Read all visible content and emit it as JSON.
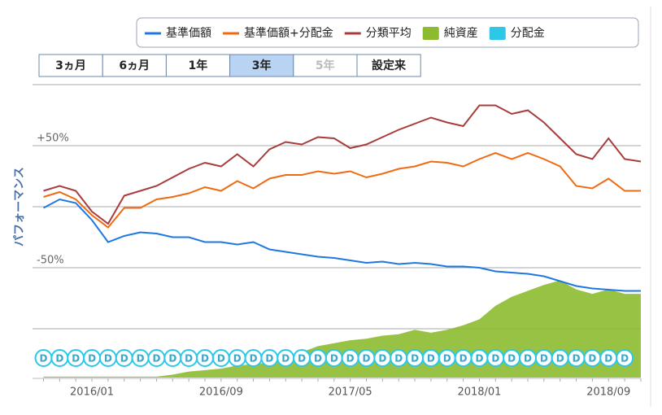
{
  "chart_data": {
    "type": "line",
    "y_label": "パフォーマンス",
    "range_buttons": {
      "labels": [
        "3ヵ月",
        "6ヵ月",
        "1年",
        "3年",
        "5年",
        "設定来"
      ],
      "selected": 3,
      "disabled": [
        4
      ]
    },
    "x": [
      "2015/10",
      "2015/11",
      "2015/12",
      "2016/01",
      "2016/02",
      "2016/03",
      "2016/04",
      "2016/05",
      "2016/06",
      "2016/07",
      "2016/08",
      "2016/09",
      "2016/10",
      "2016/11",
      "2016/12",
      "2017/01",
      "2017/02",
      "2017/03",
      "2017/04",
      "2017/05",
      "2017/06",
      "2017/07",
      "2017/08",
      "2017/09",
      "2017/10",
      "2017/11",
      "2017/12",
      "2018/01",
      "2018/02",
      "2018/03",
      "2018/04",
      "2018/05",
      "2018/06",
      "2018/07",
      "2018/08",
      "2018/09",
      "2018/10",
      "2018/11"
    ],
    "xticks": [
      "2016/01",
      "2016/09",
      "2017/05",
      "2018/01",
      "2018/09"
    ],
    "ylim": [
      -140,
      105
    ],
    "yticks": [
      {
        "value": 50,
        "label": "+50%"
      },
      {
        "value": -50,
        "label": "-50%"
      }
    ],
    "ygrid": [
      100,
      50,
      0,
      -50,
      -100
    ],
    "y2lim": [
      0,
      100
    ],
    "series": [
      {
        "name": "基準価額",
        "color": "#1f78e0",
        "type": "line",
        "values": [
          -1,
          6,
          3,
          -11,
          -29,
          -24,
          -21,
          -22,
          -25,
          -25,
          -29,
          -29,
          -31,
          -29,
          -35,
          -37,
          -39,
          -41,
          -42,
          -44,
          -46,
          -45,
          -47,
          -46,
          -47,
          -49,
          -49,
          -50,
          -53,
          -54,
          -55,
          -57,
          -61,
          -65,
          -67,
          -68,
          -69,
          -69
        ]
      },
      {
        "name": "基準価額+分配金",
        "color": "#f06a12",
        "type": "line",
        "values": [
          8,
          12,
          6,
          -7,
          -17,
          -1,
          -1,
          6,
          8,
          11,
          16,
          13,
          21,
          15,
          23,
          26,
          26,
          29,
          27,
          29,
          24,
          27,
          31,
          33,
          37,
          36,
          33,
          39,
          44,
          39,
          44,
          39,
          33,
          17,
          15,
          23,
          13,
          13
        ]
      },
      {
        "name": "分類平均",
        "color": "#a83c3c",
        "type": "line",
        "values": [
          13,
          17,
          13,
          -4,
          -14,
          9,
          13,
          17,
          24,
          31,
          36,
          33,
          43,
          33,
          47,
          53,
          51,
          57,
          56,
          48,
          51,
          57,
          63,
          68,
          73,
          69,
          66,
          83,
          83,
          76,
          79,
          69,
          56,
          43,
          39,
          56,
          39,
          37
        ]
      },
      {
        "name": "純資産",
        "color": "#8dbb2f",
        "type": "area",
        "axis": "y2",
        "values": [
          0.3,
          0.3,
          0.3,
          0.3,
          0.3,
          0.3,
          0.3,
          0.3,
          1,
          2,
          2.5,
          3,
          4,
          4.5,
          5,
          6.5,
          8.5,
          10.5,
          11.5,
          12.5,
          13,
          14,
          14.5,
          16,
          15,
          16,
          17.5,
          19.5,
          24,
          27,
          29,
          31,
          32.5,
          29.5,
          28,
          29.5,
          28,
          28
        ]
      },
      {
        "name": "分配金",
        "color": "#2cc8e6",
        "type": "marker",
        "marker_label": "D",
        "x": [
          "2015/10",
          "2015/11",
          "2015/12",
          "2016/01",
          "2016/02",
          "2016/03",
          "2016/04",
          "2016/05",
          "2016/06",
          "2016/07",
          "2016/08",
          "2016/09",
          "2016/10",
          "2016/11",
          "2016/12",
          "2017/01",
          "2017/02",
          "2017/03",
          "2017/04",
          "2017/05",
          "2017/06",
          "2017/07",
          "2017/08",
          "2017/09",
          "2017/10",
          "2017/11",
          "2017/12",
          "2018/01",
          "2018/02",
          "2018/03",
          "2018/04",
          "2018/05",
          "2018/06",
          "2018/07",
          "2018/08",
          "2018/09",
          "2018/10"
        ]
      }
    ]
  }
}
